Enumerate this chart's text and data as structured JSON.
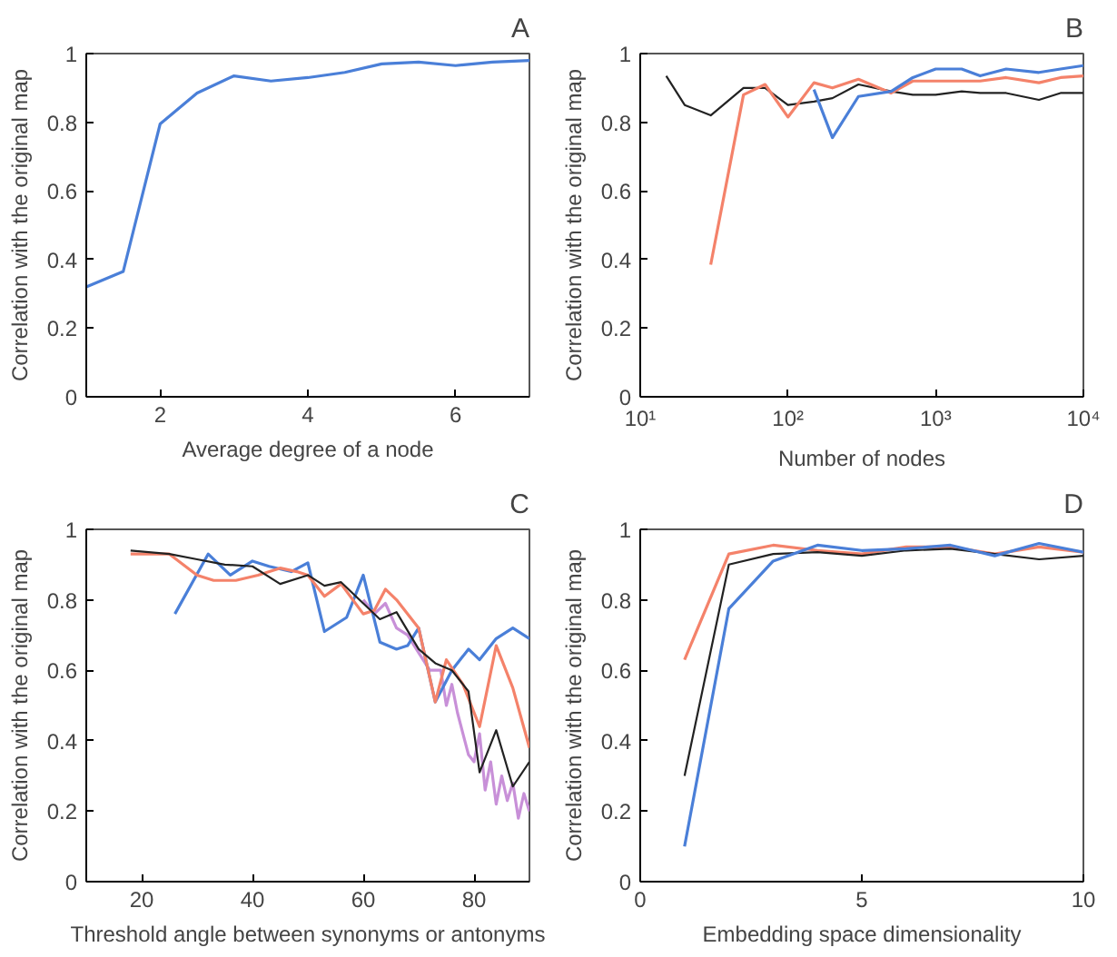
{
  "chart_data": [
    {
      "type": "line",
      "title": "A",
      "xlabel": "Average degree of a node",
      "ylabel": "Correlation with the original map",
      "xlim": [
        1,
        7
      ],
      "ylim": [
        0,
        1
      ],
      "xticks": [
        2,
        4,
        6
      ],
      "yticks": [
        0,
        0.2,
        0.4,
        0.6,
        0.8,
        1
      ],
      "grid": false,
      "series": [
        {
          "color": "#4a7fd8",
          "x": [
            1,
            1.5,
            2,
            2.5,
            3,
            3.5,
            4,
            4.5,
            5,
            5.5,
            6,
            6.5,
            7
          ],
          "values": [
            0.32,
            0.365,
            0.795,
            0.885,
            0.935,
            0.92,
            0.93,
            0.945,
            0.97,
            0.975,
            0.965,
            0.975,
            0.98
          ]
        }
      ]
    },
    {
      "type": "line",
      "title": "B",
      "xlabel": "Number of nodes",
      "ylabel": "Correlation with the original map",
      "log": "x",
      "xlim": [
        10,
        10000
      ],
      "ylim": [
        0,
        1
      ],
      "xticks": [
        {
          "value": 10,
          "label": "10¹"
        },
        {
          "value": 100,
          "label": "10²"
        },
        {
          "value": 1000,
          "label": "10³"
        },
        {
          "value": 10000,
          "label": "10⁴"
        }
      ],
      "yticks": [
        0,
        0.2,
        0.4,
        0.6,
        0.8,
        1
      ],
      "grid": false,
      "series": [
        {
          "color": "#222222",
          "x": [
            15,
            20,
            30,
            50,
            70,
            100,
            150,
            200,
            300,
            500,
            700,
            1000,
            1500,
            2000,
            3000,
            5000,
            7000,
            10000
          ],
          "values": [
            0.935,
            0.85,
            0.82,
            0.9,
            0.9,
            0.85,
            0.86,
            0.87,
            0.91,
            0.89,
            0.88,
            0.88,
            0.89,
            0.885,
            0.885,
            0.865,
            0.885,
            0.885
          ]
        },
        {
          "color": "#f4826a",
          "x": [
            30,
            50,
            70,
            100,
            150,
            200,
            300,
            500,
            700,
            1000,
            1500,
            2000,
            3000,
            5000,
            7000,
            10000
          ],
          "values": [
            0.385,
            0.88,
            0.91,
            0.815,
            0.915,
            0.9,
            0.925,
            0.885,
            0.92,
            0.92,
            0.92,
            0.92,
            0.93,
            0.915,
            0.93,
            0.935
          ]
        },
        {
          "color": "#4a7fd8",
          "x": [
            150,
            200,
            300,
            500,
            700,
            1000,
            1500,
            2000,
            3000,
            5000,
            7000,
            10000
          ],
          "values": [
            0.895,
            0.755,
            0.875,
            0.89,
            0.93,
            0.955,
            0.955,
            0.935,
            0.955,
            0.945,
            0.955,
            0.965
          ]
        }
      ]
    },
    {
      "type": "line",
      "title": "C",
      "xlabel": "Threshold angle between synonyms or antonyms",
      "ylabel": "Correlation with the original map",
      "xlim": [
        10,
        90
      ],
      "ylim": [
        0,
        1
      ],
      "xticks": [
        20,
        40,
        60,
        80
      ],
      "yticks": [
        0,
        0.2,
        0.4,
        0.6,
        0.8,
        1
      ],
      "grid": false,
      "series": [
        {
          "color": "#c890d8",
          "x": [
            60,
            62,
            64,
            66,
            68,
            70,
            72,
            74,
            75,
            76,
            77,
            78,
            79,
            80,
            81,
            82,
            83,
            84,
            85,
            86,
            87,
            88,
            89,
            90
          ],
          "values": [
            0.8,
            0.76,
            0.79,
            0.72,
            0.7,
            0.65,
            0.6,
            0.6,
            0.5,
            0.56,
            0.48,
            0.42,
            0.36,
            0.34,
            0.42,
            0.26,
            0.34,
            0.22,
            0.3,
            0.23,
            0.28,
            0.18,
            0.25,
            0.2
          ]
        },
        {
          "color": "#4a7fd8",
          "x": [
            26,
            32,
            36,
            40,
            43,
            47,
            50,
            53,
            57,
            60,
            63,
            66,
            68,
            70,
            73,
            76,
            79,
            81,
            84,
            87,
            90
          ],
          "values": [
            0.76,
            0.93,
            0.87,
            0.91,
            0.895,
            0.88,
            0.905,
            0.71,
            0.75,
            0.87,
            0.68,
            0.66,
            0.67,
            0.72,
            0.51,
            0.6,
            0.66,
            0.63,
            0.69,
            0.72,
            0.69
          ]
        },
        {
          "color": "#f4826a",
          "x": [
            18,
            25,
            30,
            33,
            37,
            41,
            45,
            48,
            50,
            53,
            56,
            60,
            62,
            64,
            66,
            70,
            73,
            75,
            78,
            81,
            84,
            87,
            90
          ],
          "values": [
            0.93,
            0.93,
            0.87,
            0.855,
            0.855,
            0.87,
            0.89,
            0.88,
            0.87,
            0.81,
            0.845,
            0.76,
            0.77,
            0.83,
            0.8,
            0.72,
            0.51,
            0.63,
            0.56,
            0.44,
            0.67,
            0.55,
            0.38
          ]
        },
        {
          "color": "#222222",
          "x": [
            18,
            25,
            30,
            35,
            40,
            45,
            50,
            53,
            56,
            60,
            63,
            66,
            70,
            73,
            76,
            79,
            81,
            84,
            87,
            90
          ],
          "values": [
            0.94,
            0.93,
            0.915,
            0.9,
            0.895,
            0.845,
            0.87,
            0.84,
            0.85,
            0.79,
            0.745,
            0.765,
            0.66,
            0.62,
            0.6,
            0.54,
            0.31,
            0.43,
            0.27,
            0.34
          ]
        }
      ]
    },
    {
      "type": "line",
      "title": "D",
      "xlabel": "Embedding space dimensionality",
      "ylabel": "Correlation with the original map",
      "xlim": [
        0,
        10
      ],
      "ylim": [
        0,
        1
      ],
      "xticks": [
        0,
        5,
        10
      ],
      "yticks": [
        0,
        0.2,
        0.4,
        0.6,
        0.8,
        1
      ],
      "grid": false,
      "series": [
        {
          "color": "#f4826a",
          "x": [
            1,
            2,
            3,
            4,
            5,
            6,
            7,
            8,
            9,
            10
          ],
          "values": [
            0.63,
            0.93,
            0.955,
            0.94,
            0.93,
            0.95,
            0.95,
            0.93,
            0.95,
            0.935
          ]
        },
        {
          "color": "#222222",
          "x": [
            1,
            2,
            3,
            4,
            5,
            6,
            7,
            8,
            9,
            10
          ],
          "values": [
            0.3,
            0.9,
            0.93,
            0.935,
            0.925,
            0.94,
            0.945,
            0.93,
            0.915,
            0.925
          ]
        },
        {
          "color": "#4a7fd8",
          "x": [
            1,
            2,
            3,
            4,
            5,
            6,
            7,
            8,
            9,
            10
          ],
          "values": [
            0.1,
            0.775,
            0.91,
            0.955,
            0.94,
            0.945,
            0.955,
            0.925,
            0.96,
            0.935
          ]
        }
      ]
    }
  ]
}
